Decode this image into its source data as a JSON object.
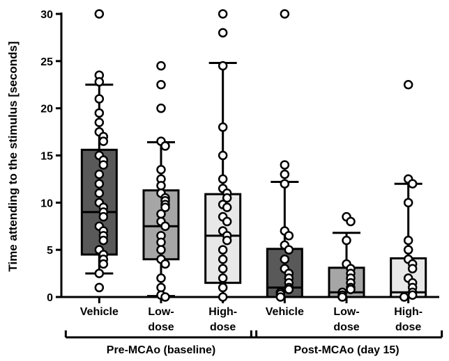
{
  "chart_data": {
    "type": "boxplot",
    "ylabel": "Time attending to the stimulus [seconds]",
    "ylim": [
      0,
      30
    ],
    "yticks": [
      0,
      5,
      10,
      15,
      20,
      25,
      30
    ],
    "groups": [
      {
        "label": "Pre-MCAo (baseline)",
        "members": [
          0,
          1,
          2
        ]
      },
      {
        "label": "Post-MCAo (day 15)",
        "members": [
          3,
          4,
          5
        ]
      }
    ],
    "boxes": [
      {
        "label": [
          "Vehicle"
        ],
        "fill": "#595959",
        "whisker_low": 2.5,
        "q1": 4.5,
        "median": 9.0,
        "q3": 15.6,
        "whisker_high": 22.5,
        "points": [
          30,
          23.5,
          22.8,
          21,
          19.5,
          18.5,
          17.5,
          17,
          16.5,
          15,
          14.5,
          14,
          13,
          12,
          11,
          10,
          9.5,
          9,
          8.5,
          7.5,
          7,
          6.5,
          6,
          5,
          4.5,
          4,
          3.5,
          2.5,
          1
        ]
      },
      {
        "label": [
          "Low-",
          "dose"
        ],
        "fill": "#a6a6a6",
        "whisker_low": 0.1,
        "q1": 4.0,
        "median": 7.5,
        "q3": 11.3,
        "whisker_high": 16.4,
        "points": [
          24.5,
          22.5,
          20,
          16.5,
          16,
          13.5,
          12.5,
          11.8,
          11,
          10.5,
          10.2,
          9.8,
          9.5,
          8.8,
          8,
          7.5,
          6.5,
          5.8,
          5,
          4,
          3.5,
          2,
          1,
          0.2,
          0
        ]
      },
      {
        "label": [
          "High-",
          "dose"
        ],
        "fill": "#e8e8e8",
        "whisker_low": 0,
        "q1": 1.5,
        "median": 6.5,
        "q3": 10.9,
        "whisker_high": 24.8,
        "points": [
          30,
          28,
          24.5,
          18,
          15,
          12.5,
          11.5,
          11,
          10.5,
          9.8,
          9.5,
          8.5,
          8,
          7,
          6.5,
          6,
          5,
          4,
          3,
          2,
          1,
          0
        ]
      },
      {
        "label": [
          "Vehicle"
        ],
        "fill": "#595959",
        "whisker_low": 0,
        "q1": 0,
        "median": 1.0,
        "q3": 5.1,
        "whisker_high": 12.2,
        "points": [
          30,
          14,
          13,
          12,
          7,
          6.5,
          5.5,
          5,
          4,
          3,
          2.5,
          2,
          1.5,
          1,
          0.8,
          0.5,
          0.3,
          0
        ]
      },
      {
        "label": [
          "Low-",
          "dose"
        ],
        "fill": "#a6a6a6",
        "whisker_low": 0,
        "q1": 0,
        "median": 0.5,
        "q3": 3.1,
        "whisker_high": 6.8,
        "points": [
          8.5,
          8,
          6,
          3.5,
          3,
          2.5,
          2,
          1.5,
          1,
          0.8,
          0.5,
          0.2,
          0
        ]
      },
      {
        "label": [
          "High-",
          "dose"
        ],
        "fill": "#e8e8e8",
        "whisker_low": 0,
        "q1": 0,
        "median": 0.5,
        "q3": 4.1,
        "whisker_high": 12.0,
        "points": [
          22.5,
          12.5,
          12,
          10,
          6,
          5,
          4,
          3.5,
          3,
          2,
          1.5,
          1,
          0.5,
          0.2,
          0
        ]
      }
    ]
  }
}
